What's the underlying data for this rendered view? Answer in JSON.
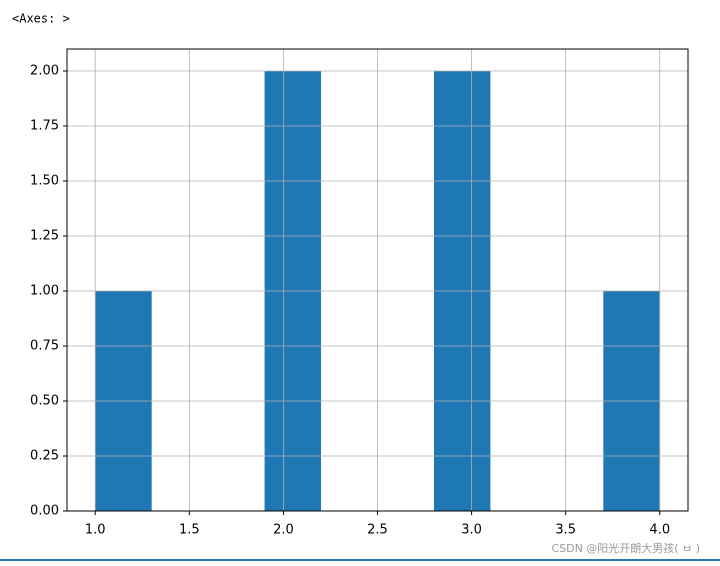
{
  "output_label": "<Axes: >",
  "chart_data": {
    "type": "histogram",
    "bins": [
      1.0,
      1.3,
      1.6,
      1.9,
      2.2,
      2.5,
      2.8,
      3.1,
      3.4,
      3.7,
      4.0
    ],
    "values": [
      1,
      0,
      0,
      2,
      0,
      0,
      2,
      0,
      0,
      1
    ],
    "color": "#1f77b4",
    "xlim": [
      0.85,
      4.15
    ],
    "xticks": [
      {
        "value": 1.0,
        "label": "1.0"
      },
      {
        "value": 1.5,
        "label": "1.5"
      },
      {
        "value": 2.0,
        "label": "2.0"
      },
      {
        "value": 2.5,
        "label": "2.5"
      },
      {
        "value": 3.0,
        "label": "3.0"
      },
      {
        "value": 3.5,
        "label": "3.5"
      },
      {
        "value": 4.0,
        "label": "4.0"
      }
    ],
    "ylim": [
      0,
      2.1
    ],
    "yticks": [
      {
        "value": 0,
        "label": "0.00"
      },
      {
        "value": 0.25,
        "label": "0.25"
      },
      {
        "value": 0.5,
        "label": "0.50"
      },
      {
        "value": 0.75,
        "label": "0.75"
      },
      {
        "value": 1.0,
        "label": "1.00"
      },
      {
        "value": 1.25,
        "label": "1.25"
      },
      {
        "value": 1.5,
        "label": "1.50"
      },
      {
        "value": 1.75,
        "label": "1.75"
      },
      {
        "value": 2.0,
        "label": "2.00"
      }
    ],
    "grid": true
  },
  "watermark": "CSDN @阳光开朗大男孩( ㅂ )"
}
